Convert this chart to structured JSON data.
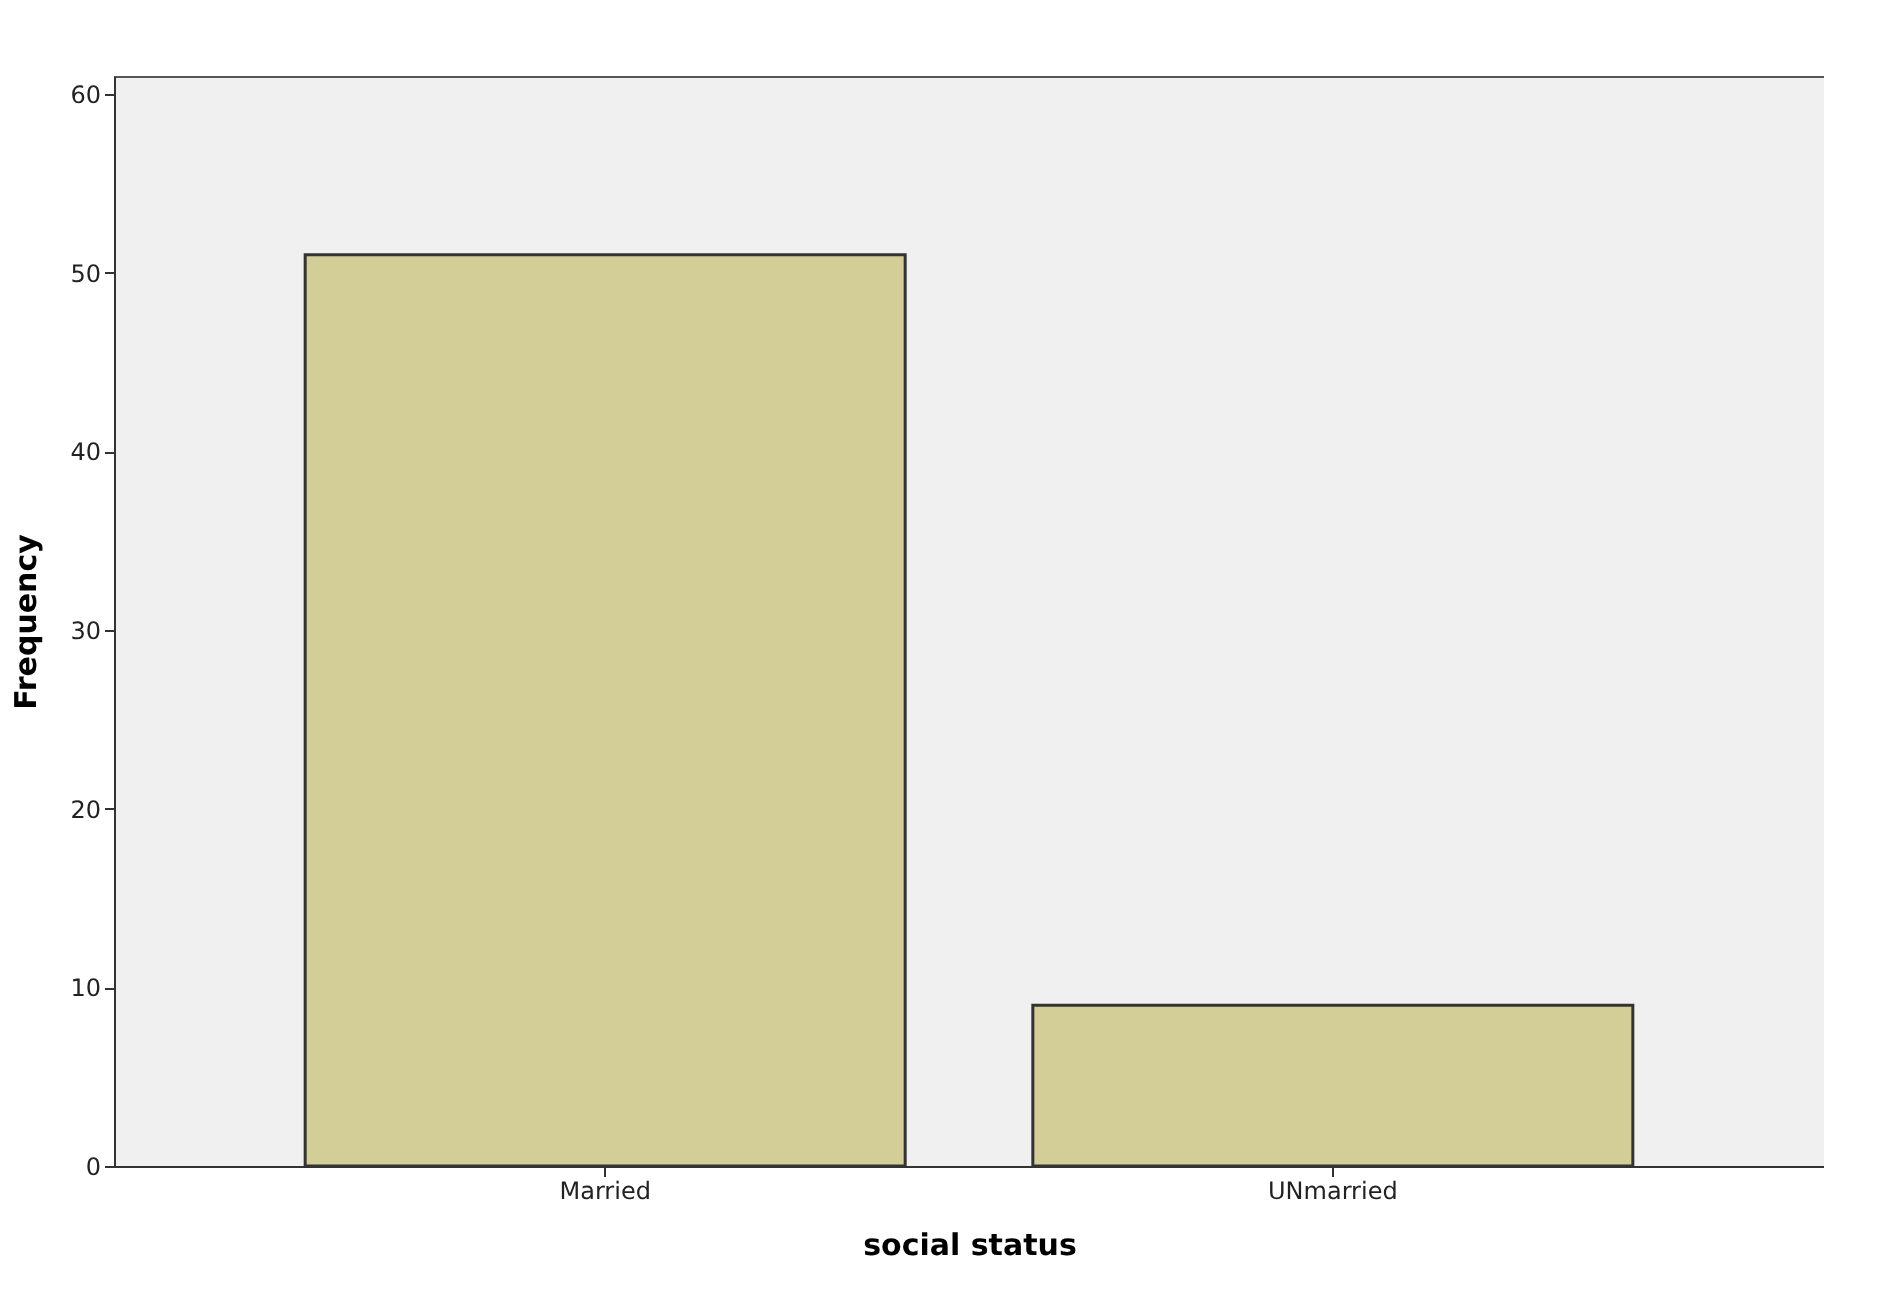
{
  "chart_data": {
    "type": "bar",
    "xlabel": "social status",
    "ylabel": "Frequency",
    "categories": [
      "Married",
      "UNmarried"
    ],
    "values": [
      51,
      9
    ],
    "color": "#d3ce97",
    "ylim": [
      0,
      61
    ],
    "yticks": [
      0,
      10,
      20,
      30,
      40,
      50,
      60
    ],
    "grid": false
  }
}
